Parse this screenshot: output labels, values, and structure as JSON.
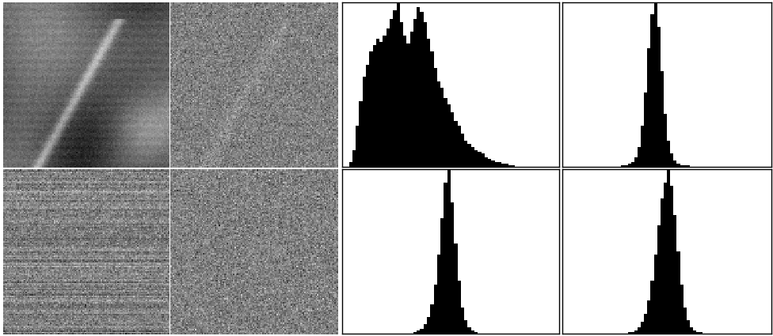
{
  "chart_data": [
    {
      "type": "histogram",
      "color": "#000000",
      "tick_labels": false,
      "xlim": [
        0,
        256
      ],
      "ylim": [
        0,
        100
      ],
      "bins": [
        0,
        4,
        8,
        12,
        16,
        20,
        24,
        28,
        32,
        36,
        40,
        44,
        48,
        52,
        56,
        60,
        64,
        68,
        72,
        76,
        80,
        84,
        88,
        92,
        96,
        100,
        104,
        108,
        112,
        116,
        120,
        124,
        128,
        132,
        136,
        140,
        144,
        148,
        152,
        156,
        160,
        164,
        168,
        172,
        176,
        180,
        184,
        188,
        192,
        196,
        200,
        204,
        208,
        212,
        216,
        220,
        224,
        228,
        232,
        236,
        240,
        244,
        248,
        252,
        256
      ],
      "counts": [
        0,
        0,
        3,
        10,
        25,
        40,
        55,
        62,
        70,
        74,
        78,
        76,
        80,
        84,
        90,
        95,
        100,
        88,
        80,
        75,
        82,
        90,
        97,
        94,
        88,
        78,
        70,
        60,
        52,
        48,
        42,
        38,
        33,
        28,
        25,
        20,
        16,
        14,
        12,
        10,
        9,
        8,
        6,
        5,
        4,
        3,
        3,
        2,
        2,
        1,
        1,
        0,
        0,
        0,
        0,
        0,
        0,
        0,
        0,
        0,
        0,
        0,
        0,
        0
      ]
    },
    {
      "type": "histogram",
      "color": "#000000",
      "tick_labels": false,
      "xlim": [
        0,
        256
      ],
      "ylim": [
        0,
        100
      ],
      "bins": [
        0,
        4,
        8,
        12,
        16,
        20,
        24,
        28,
        32,
        36,
        40,
        44,
        48,
        52,
        56,
        60,
        64,
        68,
        72,
        76,
        80,
        84,
        88,
        92,
        96,
        100,
        104,
        108,
        112,
        116,
        120,
        124,
        128,
        132,
        136,
        140,
        144,
        148,
        152,
        156,
        160,
        164,
        168,
        172,
        176,
        180,
        184,
        188,
        192,
        196,
        200,
        204,
        208,
        212,
        216,
        220,
        224,
        228,
        232,
        236,
        240,
        244,
        248,
        252,
        256
      ],
      "counts": [
        0,
        0,
        0,
        0,
        0,
        0,
        0,
        0,
        0,
        0,
        0,
        0,
        0,
        0,
        0,
        0,
        0,
        0,
        1,
        1,
        2,
        3,
        6,
        12,
        25,
        45,
        72,
        93,
        100,
        85,
        58,
        32,
        16,
        8,
        4,
        2,
        1,
        1,
        1,
        0,
        0,
        0,
        0,
        0,
        0,
        0,
        0,
        0,
        0,
        0,
        0,
        0,
        0,
        0,
        0,
        0,
        0,
        0,
        0,
        0,
        0,
        0,
        0,
        0
      ]
    },
    {
      "type": "histogram",
      "color": "#000000",
      "tick_labels": false,
      "xlim": [
        0,
        256
      ],
      "ylim": [
        0,
        100
      ],
      "bins": [
        0,
        4,
        8,
        12,
        16,
        20,
        24,
        28,
        32,
        36,
        40,
        44,
        48,
        52,
        56,
        60,
        64,
        68,
        72,
        76,
        80,
        84,
        88,
        92,
        96,
        100,
        104,
        108,
        112,
        116,
        120,
        124,
        128,
        132,
        136,
        140,
        144,
        148,
        152,
        156,
        160,
        164,
        168,
        172,
        176,
        180,
        184,
        188,
        192,
        196,
        200,
        204,
        208,
        212,
        216,
        220,
        224,
        228,
        232,
        236,
        240,
        244,
        248,
        252,
        256
      ],
      "counts": [
        0,
        0,
        0,
        0,
        0,
        0,
        0,
        0,
        0,
        0,
        0,
        0,
        0,
        0,
        0,
        0,
        0,
        0,
        0,
        0,
        0,
        1,
        2,
        3,
        6,
        10,
        18,
        30,
        48,
        70,
        92,
        100,
        80,
        55,
        32,
        16,
        8,
        4,
        2,
        1,
        0,
        0,
        0,
        0,
        0,
        0,
        0,
        0,
        0,
        0,
        0,
        0,
        0,
        0,
        0,
        0,
        0,
        0,
        0,
        0,
        0,
        0,
        0,
        0
      ]
    },
    {
      "type": "histogram",
      "color": "#000000",
      "tick_labels": false,
      "xlim": [
        0,
        256
      ],
      "ylim": [
        0,
        100
      ],
      "bins": [
        0,
        4,
        8,
        12,
        16,
        20,
        24,
        28,
        32,
        36,
        40,
        44,
        48,
        52,
        56,
        60,
        64,
        68,
        72,
        76,
        80,
        84,
        88,
        92,
        96,
        100,
        104,
        108,
        112,
        116,
        120,
        124,
        128,
        132,
        136,
        140,
        144,
        148,
        152,
        156,
        160,
        164,
        168,
        172,
        176,
        180,
        184,
        188,
        192,
        196,
        200,
        204,
        208,
        212,
        216,
        220,
        224,
        228,
        232,
        236,
        240,
        244,
        248,
        252,
        256
      ],
      "counts": [
        0,
        0,
        0,
        0,
        0,
        0,
        0,
        0,
        0,
        0,
        0,
        0,
        0,
        0,
        0,
        0,
        0,
        0,
        0,
        0,
        1,
        1,
        2,
        4,
        7,
        12,
        20,
        32,
        48,
        66,
        82,
        92,
        100,
        90,
        72,
        50,
        30,
        16,
        8,
        4,
        2,
        1,
        1,
        0,
        0,
        0,
        0,
        0,
        0,
        0,
        0,
        0,
        0,
        0,
        0,
        0,
        0,
        0,
        0,
        0,
        0,
        0,
        0,
        0
      ]
    }
  ]
}
